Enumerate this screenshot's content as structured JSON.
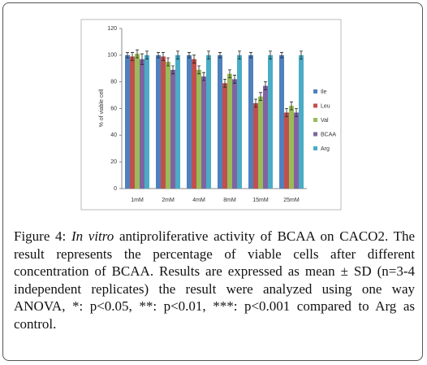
{
  "chart_data": {
    "type": "bar",
    "y_label": "% of viable cell",
    "categories": [
      "1mM",
      "2mM",
      "4mM",
      "8mM",
      "15mM",
      "25mM"
    ],
    "series": [
      {
        "name": "Ile",
        "color": "#4f81bd",
        "values": [
          100,
          100,
          100,
          100,
          100,
          100
        ],
        "errors": [
          2,
          2,
          2,
          2,
          2,
          2
        ]
      },
      {
        "name": "Leu",
        "color": "#c0504d",
        "values": [
          99,
          99,
          97,
          79,
          64,
          57
        ],
        "errors": [
          3,
          3,
          3,
          3,
          3,
          3
        ]
      },
      {
        "name": "Val",
        "color": "#9bbb59",
        "values": [
          101,
          95,
          89,
          86,
          69,
          62
        ],
        "errors": [
          3,
          3,
          3,
          3,
          3,
          3
        ]
      },
      {
        "name": "BCAA",
        "color": "#8064a2",
        "values": [
          97,
          89,
          84,
          82,
          77,
          57
        ],
        "errors": [
          4,
          3,
          3,
          3,
          3,
          3
        ]
      },
      {
        "name": "Arg",
        "color": "#4bacc6",
        "values": [
          100,
          100,
          100,
          100,
          100,
          100
        ],
        "errors": [
          3,
          3,
          3,
          3,
          3,
          3
        ]
      }
    ],
    "ylim": [
      0,
      120
    ],
    "yticks": [
      0,
      20,
      40,
      60,
      80,
      100,
      120
    ],
    "legend": "right"
  },
  "caption": {
    "label": "Figure 4:",
    "italic": "In vitro",
    "text": "antiproliferative activity of BCAA on CACO2. The result represents the percentage of viable cells after different concentration of BCAA. Results are expressed as mean ± SD (n=3-4 independent replicates) the result were analyzed using one way ANOVA, *: p<0.05, **: p<0.01, ***: p<0.001 compared to Arg as control."
  }
}
